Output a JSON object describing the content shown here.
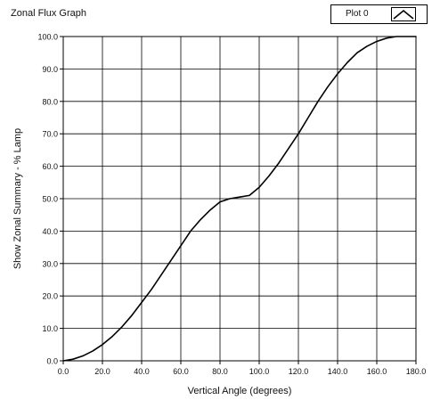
{
  "chart_data": {
    "type": "line",
    "title": "Zonal Flux Graph",
    "xlabel": "Vertical Angle (degrees)",
    "ylabel": "Show Zonal Summary - % Lamp",
    "xlim": [
      0,
      180
    ],
    "ylim": [
      0,
      100
    ],
    "x_ticks": [
      "0.0",
      "20.0",
      "40.0",
      "60.0",
      "80.0",
      "100.0",
      "120.0",
      "140.0",
      "160.0",
      "180.0"
    ],
    "y_ticks": [
      "0.0",
      "10.0",
      "20.0",
      "30.0",
      "40.0",
      "50.0",
      "60.0",
      "70.0",
      "80.0",
      "90.0",
      "100.0"
    ],
    "grid": true,
    "legend_position": "top-right",
    "series": [
      {
        "name": "Plot 0",
        "color": "#000000",
        "x": [
          0,
          5,
          10,
          15,
          20,
          25,
          30,
          35,
          40,
          45,
          50,
          55,
          60,
          65,
          70,
          75,
          80,
          85,
          90,
          95,
          100,
          105,
          110,
          115,
          120,
          125,
          130,
          135,
          140,
          145,
          150,
          155,
          160,
          165,
          170,
          175,
          180
        ],
        "y": [
          0,
          0.5,
          1.5,
          3,
          5,
          7.5,
          10.5,
          14,
          18,
          22,
          26.5,
          31,
          35.5,
          40,
          43.5,
          46.5,
          49,
          50,
          50.5,
          51,
          53.5,
          57,
          61,
          65.5,
          70,
          75,
          80,
          84.5,
          88.5,
          92,
          95,
          97,
          98.5,
          99.5,
          100,
          100,
          100
        ]
      }
    ]
  }
}
